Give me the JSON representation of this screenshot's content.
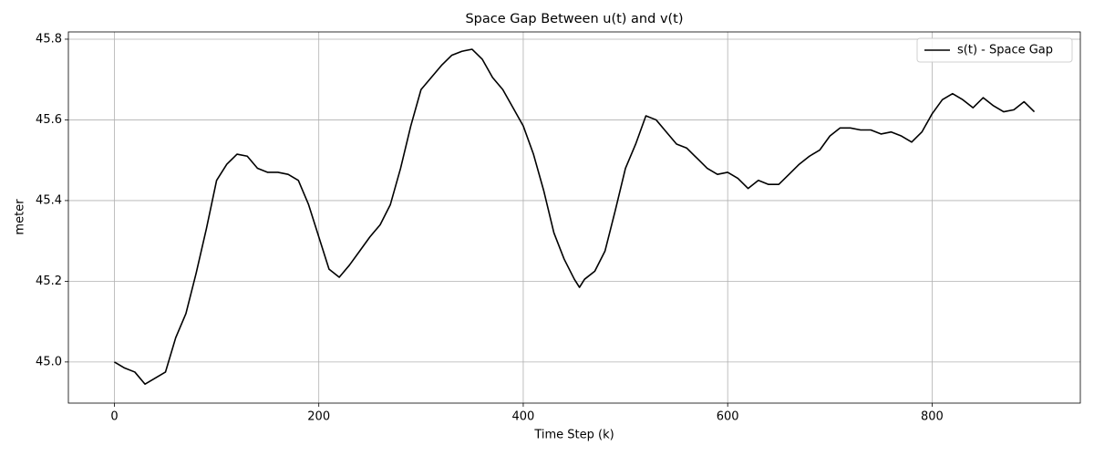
{
  "chart_data": {
    "type": "line",
    "title": "Space Gap Between u(t) and v(t)",
    "xlabel": "Time Step (k)",
    "ylabel": "meter",
    "x": [
      0,
      10,
      20,
      30,
      40,
      50,
      60,
      70,
      80,
      90,
      100,
      110,
      120,
      130,
      140,
      150,
      160,
      170,
      180,
      190,
      200,
      210,
      220,
      230,
      240,
      250,
      260,
      270,
      280,
      290,
      300,
      310,
      320,
      330,
      340,
      350,
      360,
      370,
      380,
      390,
      400,
      410,
      420,
      430,
      440,
      450,
      455,
      460,
      470,
      480,
      490,
      500,
      510,
      520,
      530,
      540,
      550,
      560,
      570,
      580,
      590,
      600,
      610,
      620,
      630,
      640,
      650,
      660,
      670,
      680,
      690,
      700,
      710,
      720,
      730,
      740,
      750,
      760,
      770,
      780,
      790,
      800,
      810,
      820,
      830,
      840,
      850,
      860,
      870,
      880,
      890,
      900
    ],
    "series": [
      {
        "name": "s(t) - Space Gap",
        "color": "#000000",
        "values": [
          45.0,
          44.985,
          44.975,
          44.945,
          44.96,
          44.975,
          45.06,
          45.12,
          45.22,
          45.33,
          45.45,
          45.49,
          45.515,
          45.51,
          45.48,
          45.47,
          45.47,
          45.465,
          45.45,
          45.39,
          45.31,
          45.23,
          45.21,
          45.24,
          45.275,
          45.31,
          45.34,
          45.39,
          45.48,
          45.585,
          45.675,
          45.705,
          45.735,
          45.76,
          45.77,
          45.775,
          45.75,
          45.705,
          45.675,
          45.63,
          45.585,
          45.515,
          45.425,
          45.32,
          45.255,
          45.205,
          45.185,
          45.205,
          45.225,
          45.275,
          45.375,
          45.48,
          45.54,
          45.61,
          45.6,
          45.57,
          45.54,
          45.53,
          45.505,
          45.48,
          45.465,
          45.47,
          45.455,
          45.43,
          45.45,
          45.44,
          45.44,
          45.465,
          45.49,
          45.51,
          45.525,
          45.56,
          45.58,
          45.58,
          45.575,
          45.575,
          45.565,
          45.57,
          45.56,
          45.545,
          45.57,
          45.615,
          45.65,
          45.665,
          45.65,
          45.63,
          45.655,
          45.635,
          45.62,
          45.625,
          45.645,
          45.62
        ]
      }
    ],
    "xlim": [
      -45,
      945
    ],
    "ylim": [
      44.898,
      45.818
    ],
    "xticks": [
      0,
      200,
      400,
      600,
      800
    ],
    "yticks": [
      {
        "value": 45,
        "label": "45.0"
      },
      45.2,
      45.4,
      45.6,
      45.8
    ],
    "grid": true,
    "legend": "upper right"
  }
}
